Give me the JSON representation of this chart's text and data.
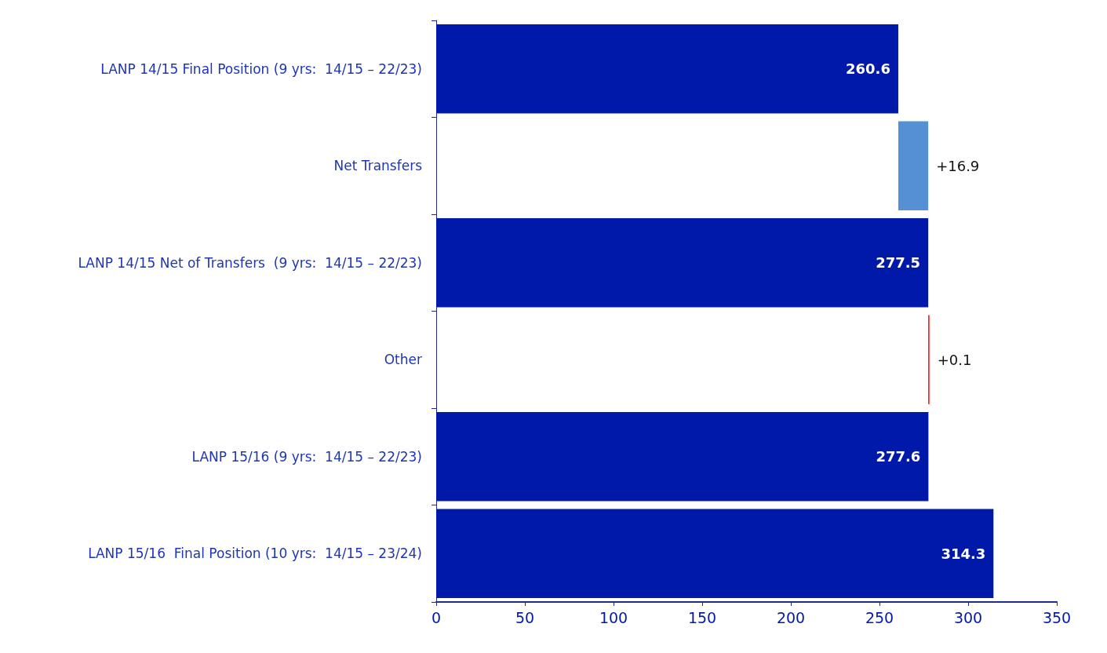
{
  "chart_data": {
    "type": "bar",
    "orientation": "horizontal",
    "categories": [
      "LANP 14/15 Final Position (9 yrs:  14/15 – 22/23)",
      "Net Transfers",
      "LANP 14/15 Net of Transfers  (9 yrs:  14/15 – 22/23)",
      "Other",
      "LANP 15/16 (9 yrs:  14/15 – 22/23)",
      "LANP 15/16  Final Position (10 yrs:  14/15 – 23/24)"
    ],
    "values": [
      260.6,
      16.9,
      277.5,
      0.1,
      277.6,
      314.3
    ],
    "base": [
      0,
      260.6,
      0,
      277.5,
      0,
      0
    ],
    "colors": [
      "#0019a8",
      "#5590d4",
      "#0019a8",
      "#ff0000",
      "#0019a8",
      "#0019a8"
    ],
    "value_labels": [
      "260.6",
      "+16.9",
      "277.5",
      "+0.1",
      "277.6",
      "314.3"
    ],
    "xlim": [
      0,
      350
    ],
    "xticks": [
      0,
      50,
      100,
      150,
      200,
      250,
      300,
      350
    ]
  }
}
